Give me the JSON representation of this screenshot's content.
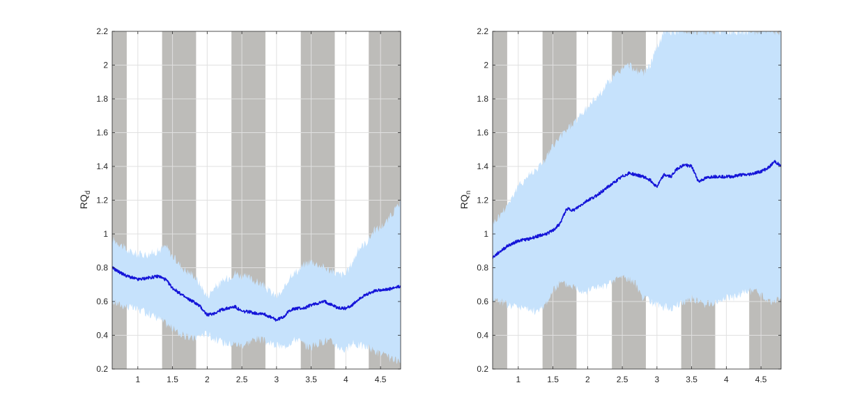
{
  "chart_data": [
    {
      "type": "line",
      "ylabel": "RQ",
      "ylabel_sub": "d",
      "xlim": [
        0.63,
        4.79
      ],
      "ylim": [
        0.2,
        2.2
      ],
      "xticks": [
        1,
        1.5,
        2,
        2.5,
        3,
        3.5,
        4,
        4.5
      ],
      "xtick_labels": [
        "1",
        "1.5",
        "2",
        "2.5",
        "3",
        "3.5",
        "4",
        "4.5"
      ],
      "yticks": [
        0.2,
        0.4,
        0.6,
        0.8,
        1,
        1.2,
        1.4,
        1.6,
        1.8,
        2,
        2.2
      ],
      "ytick_labels": [
        "0.2",
        "0.4",
        "0.6",
        "0.8",
        "1",
        "1.2",
        "1.4",
        "1.6",
        "1.8",
        "2",
        "2.2"
      ],
      "grid": true,
      "shaded_bands": [
        [
          0.63,
          0.84
        ],
        [
          1.35,
          1.84
        ],
        [
          2.35,
          2.84
        ],
        [
          3.35,
          3.84
        ],
        [
          4.33,
          4.79
        ]
      ],
      "series": [
        {
          "x": [
            0.63,
            0.75,
            0.85,
            1.0,
            1.15,
            1.3,
            1.4,
            1.5,
            1.6,
            1.7,
            1.8,
            1.9,
            2.0,
            2.1,
            2.2,
            2.3,
            2.4,
            2.5,
            2.6,
            2.7,
            2.8,
            2.9,
            3.0,
            3.1,
            3.2,
            3.3,
            3.4,
            3.5,
            3.6,
            3.7,
            3.8,
            3.9,
            4.0,
            4.1,
            4.2,
            4.3,
            4.4,
            4.5,
            4.6,
            4.7,
            4.79
          ],
          "y": [
            0.8,
            0.77,
            0.75,
            0.73,
            0.74,
            0.75,
            0.73,
            0.68,
            0.65,
            0.62,
            0.6,
            0.57,
            0.52,
            0.53,
            0.55,
            0.56,
            0.57,
            0.54,
            0.54,
            0.53,
            0.53,
            0.51,
            0.49,
            0.51,
            0.55,
            0.56,
            0.56,
            0.58,
            0.59,
            0.6,
            0.58,
            0.56,
            0.56,
            0.58,
            0.62,
            0.64,
            0.66,
            0.67,
            0.67,
            0.68,
            0.69
          ],
          "lower": [
            0.6,
            0.58,
            0.57,
            0.55,
            0.53,
            0.5,
            0.47,
            0.44,
            0.41,
            0.39,
            0.38,
            0.4,
            0.41,
            0.38,
            0.36,
            0.35,
            0.35,
            0.34,
            0.36,
            0.38,
            0.37,
            0.35,
            0.34,
            0.33,
            0.36,
            0.38,
            0.34,
            0.33,
            0.35,
            0.37,
            0.36,
            0.33,
            0.31,
            0.35,
            0.34,
            0.33,
            0.31,
            0.29,
            0.27,
            0.25,
            0.24
          ],
          "upper": [
            0.97,
            0.94,
            0.9,
            0.88,
            0.88,
            0.9,
            0.93,
            0.87,
            0.82,
            0.78,
            0.76,
            0.7,
            0.63,
            0.68,
            0.71,
            0.74,
            0.77,
            0.75,
            0.74,
            0.72,
            0.7,
            0.66,
            0.63,
            0.66,
            0.76,
            0.78,
            0.82,
            0.84,
            0.82,
            0.8,
            0.78,
            0.76,
            0.76,
            0.84,
            0.92,
            0.95,
            1.02,
            1.04,
            1.08,
            1.14,
            1.18
          ]
        }
      ],
      "colors": {
        "band": "#bdbcb9",
        "ci_fill": "#c6e2fc",
        "line": "#1414d8",
        "axis": "#262626",
        "grid": "#e0e0e0"
      }
    },
    {
      "type": "line",
      "ylabel": "RQ",
      "ylabel_sub": "n",
      "xlim": [
        0.63,
        4.79
      ],
      "ylim": [
        0.2,
        2.2
      ],
      "xticks": [
        1,
        1.5,
        2,
        2.5,
        3,
        3.5,
        4,
        4.5
      ],
      "xtick_labels": [
        "1",
        "1.5",
        "2",
        "2.5",
        "3",
        "3.5",
        "4",
        "4.5"
      ],
      "yticks": [
        0.2,
        0.4,
        0.6,
        0.8,
        1,
        1.2,
        1.4,
        1.6,
        1.8,
        2,
        2.2
      ],
      "ytick_labels": [
        "0.2",
        "0.4",
        "0.6",
        "0.8",
        "1",
        "1.2",
        "1.4",
        "1.6",
        "1.8",
        "2",
        "2.2"
      ],
      "grid": true,
      "shaded_bands": [
        [
          0.63,
          0.84
        ],
        [
          1.35,
          1.84
        ],
        [
          2.35,
          2.84
        ],
        [
          3.35,
          3.84
        ],
        [
          4.33,
          4.79
        ]
      ],
      "series": [
        {
          "x": [
            0.63,
            0.75,
            0.85,
            1.0,
            1.15,
            1.3,
            1.4,
            1.5,
            1.6,
            1.7,
            1.8,
            1.9,
            2.0,
            2.1,
            2.2,
            2.3,
            2.4,
            2.5,
            2.6,
            2.7,
            2.8,
            2.9,
            3.0,
            3.1,
            3.2,
            3.3,
            3.4,
            3.5,
            3.6,
            3.7,
            3.8,
            3.9,
            4.0,
            4.1,
            4.2,
            4.3,
            4.4,
            4.5,
            4.6,
            4.7,
            4.79
          ],
          "y": [
            0.86,
            0.9,
            0.93,
            0.96,
            0.97,
            0.99,
            1.0,
            1.02,
            1.06,
            1.15,
            1.14,
            1.17,
            1.2,
            1.22,
            1.25,
            1.28,
            1.31,
            1.34,
            1.36,
            1.35,
            1.34,
            1.32,
            1.28,
            1.35,
            1.34,
            1.39,
            1.41,
            1.4,
            1.31,
            1.33,
            1.34,
            1.34,
            1.34,
            1.34,
            1.35,
            1.35,
            1.36,
            1.37,
            1.39,
            1.43,
            1.4
          ],
          "lower": [
            0.62,
            0.6,
            0.58,
            0.57,
            0.55,
            0.54,
            0.59,
            0.66,
            0.71,
            0.7,
            0.69,
            0.67,
            0.66,
            0.69,
            0.68,
            0.7,
            0.73,
            0.75,
            0.73,
            0.7,
            0.62,
            0.6,
            0.58,
            0.57,
            0.56,
            0.58,
            0.6,
            0.62,
            0.6,
            0.58,
            0.59,
            0.6,
            0.63,
            0.62,
            0.64,
            0.66,
            0.66,
            0.64,
            0.6,
            0.6,
            0.62
          ],
          "upper": [
            1.06,
            1.12,
            1.18,
            1.28,
            1.35,
            1.4,
            1.45,
            1.52,
            1.57,
            1.62,
            1.66,
            1.7,
            1.75,
            1.8,
            1.84,
            1.9,
            1.94,
            1.98,
            2.0,
            1.97,
            1.95,
            2.0,
            2.1,
            2.2,
            2.2,
            2.2,
            2.2,
            2.2,
            2.2,
            2.2,
            2.2,
            2.2,
            2.2,
            2.2,
            2.2,
            2.2,
            2.2,
            2.2,
            2.2,
            2.2,
            2.2
          ]
        }
      ],
      "colors": {
        "band": "#bdbcb9",
        "ci_fill": "#c6e2fc",
        "line": "#1414d8",
        "axis": "#262626",
        "grid": "#e0e0e0"
      }
    }
  ]
}
